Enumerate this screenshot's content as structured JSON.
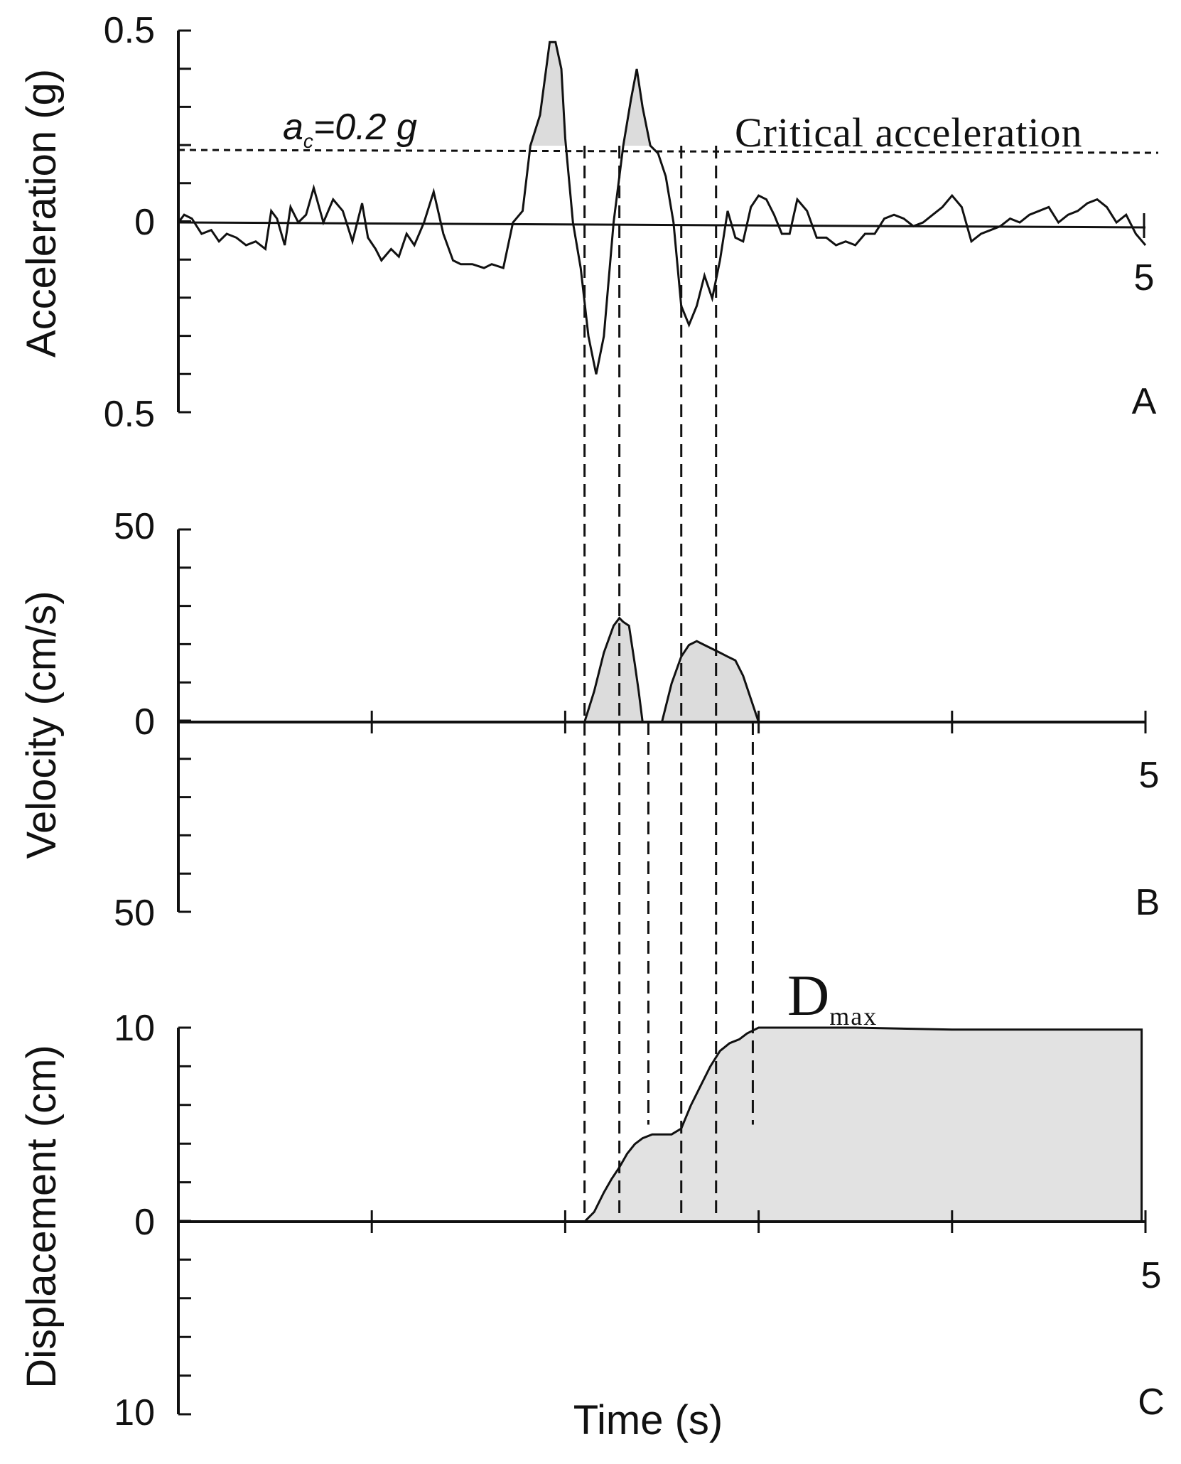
{
  "chart_data": [
    {
      "panel": "A",
      "type": "line",
      "panel_label": "A",
      "ylabel": "Acceleration (g)",
      "ylim": [
        -0.5,
        0.5
      ],
      "xlim": [
        0,
        5
      ],
      "y_tick_labels": {
        "top": "0.5",
        "zero": "0",
        "bottom": "0.5"
      },
      "x_end_label": "5",
      "critical_label": "ac=0.2 g",
      "critical_label_main": "a",
      "critical_label_sub": "c",
      "critical_label_rest": "=0.2 g",
      "critical_annotation": "Critical acceleration",
      "critical_value": 0.2,
      "fill_above_critical": true,
      "fill_color": "#dcdcdc",
      "series": [
        {
          "x": [
            0.0,
            0.03,
            0.07,
            0.12,
            0.17,
            0.21,
            0.25,
            0.3,
            0.35,
            0.4,
            0.45,
            0.48,
            0.51,
            0.55,
            0.58,
            0.62,
            0.66,
            0.7,
            0.75,
            0.8,
            0.85,
            0.9,
            0.95,
            0.98,
            1.02,
            1.05,
            1.1,
            1.14,
            1.18,
            1.22,
            1.27,
            1.32,
            1.37,
            1.42,
            1.46,
            1.52,
            1.58,
            1.62,
            1.68,
            1.73,
            1.78,
            1.82,
            1.87,
            1.92,
            1.95,
            1.98,
            2.0,
            2.04,
            2.08,
            2.12,
            2.16,
            2.2,
            2.25,
            2.3,
            2.34,
            2.37,
            2.4,
            2.44,
            2.48,
            2.52,
            2.56,
            2.6,
            2.64,
            2.68,
            2.72,
            2.76,
            2.8,
            2.84,
            2.88,
            2.92,
            2.96,
            3.0,
            3.04,
            3.08,
            3.12,
            3.16,
            3.2,
            3.25,
            3.3,
            3.35,
            3.4,
            3.45,
            3.5,
            3.55,
            3.6,
            3.65,
            3.7,
            3.75,
            3.8,
            3.85,
            3.9,
            3.95,
            4.0,
            4.05,
            4.1,
            4.15,
            4.2,
            4.25,
            4.3,
            4.35,
            4.4,
            4.45,
            4.5,
            4.55,
            4.6,
            4.65,
            4.7,
            4.75,
            4.8,
            4.85,
            4.9,
            4.95,
            5.0
          ],
          "y": [
            0.0,
            0.02,
            0.01,
            -0.03,
            -0.02,
            -0.05,
            -0.03,
            -0.04,
            -0.06,
            -0.05,
            -0.07,
            0.03,
            0.01,
            -0.06,
            0.04,
            0.0,
            0.02,
            0.09,
            0.0,
            0.06,
            0.03,
            -0.05,
            0.05,
            -0.04,
            -0.07,
            -0.1,
            -0.07,
            -0.09,
            -0.03,
            -0.06,
            0.0,
            0.08,
            -0.03,
            -0.1,
            -0.11,
            -0.11,
            -0.12,
            -0.11,
            -0.12,
            0.0,
            0.03,
            0.2,
            0.28,
            0.47,
            0.47,
            0.4,
            0.22,
            0.0,
            -0.12,
            -0.3,
            -0.4,
            -0.3,
            0.0,
            0.2,
            0.32,
            0.4,
            0.3,
            0.2,
            0.18,
            0.12,
            0.0,
            -0.22,
            -0.27,
            -0.22,
            -0.14,
            -0.2,
            -0.1,
            0.03,
            -0.04,
            -0.05,
            0.04,
            0.07,
            0.06,
            0.02,
            -0.03,
            -0.03,
            0.06,
            0.03,
            -0.04,
            -0.04,
            -0.06,
            -0.05,
            -0.06,
            -0.03,
            -0.03,
            0.01,
            0.02,
            0.01,
            -0.01,
            0.0,
            0.02,
            0.04,
            0.07,
            0.04,
            -0.05,
            -0.03,
            -0.02,
            -0.01,
            0.01,
            0.0,
            0.02,
            0.03,
            0.04,
            0.0,
            0.02,
            0.03,
            0.05,
            0.06,
            0.04,
            0.0,
            0.02,
            -0.03,
            -0.06
          ]
        }
      ]
    },
    {
      "panel": "B",
      "type": "area",
      "panel_label": "B",
      "ylabel": "Velocity (cm/s)",
      "ylim": [
        -50,
        50
      ],
      "xlim": [
        0,
        5
      ],
      "y_tick_labels": {
        "top": "50",
        "zero": "0",
        "bottom": "50"
      },
      "x_end_label": "5",
      "fill_color": "#dcdcdc",
      "series": [
        {
          "x": [
            2.1,
            2.15,
            2.2,
            2.25,
            2.28,
            2.3,
            2.33,
            2.36,
            2.38,
            2.4,
            2.45,
            2.5,
            2.55,
            2.6,
            2.64,
            2.68,
            2.72,
            2.76,
            2.8,
            2.84,
            2.88,
            2.92,
            2.96,
            3.0
          ],
          "y": [
            0,
            8,
            18,
            25,
            27,
            26,
            25,
            15,
            8,
            0,
            null,
            0,
            10,
            17,
            20,
            21,
            20,
            19,
            18,
            17,
            16,
            12,
            6,
            0
          ]
        }
      ]
    },
    {
      "panel": "C",
      "type": "area",
      "panel_label": "C",
      "ylabel": "Displacement (cm)",
      "xlabel": "Time (s)",
      "ylim": [
        -10,
        10
      ],
      "xlim": [
        0,
        5
      ],
      "y_tick_labels": {
        "top": "10",
        "zero": "0",
        "bottom": "10"
      },
      "x_end_label": "5",
      "annotation_main": "D",
      "annotation_sub": "max",
      "fill_color": "#e2e2e2",
      "series": [
        {
          "x": [
            0.0,
            2.1,
            2.15,
            2.2,
            2.24,
            2.28,
            2.32,
            2.36,
            2.4,
            2.45,
            2.5,
            2.55,
            2.6,
            2.65,
            2.7,
            2.75,
            2.8,
            2.85,
            2.9,
            2.94,
            2.98,
            3.0,
            3.5,
            4.0,
            4.5,
            4.98
          ],
          "y": [
            0,
            0,
            0.5,
            1.5,
            2.2,
            2.8,
            3.5,
            4.0,
            4.3,
            4.5,
            4.5,
            4.5,
            4.8,
            6.0,
            7.0,
            8.0,
            8.8,
            9.2,
            9.4,
            9.7,
            9.9,
            10.0,
            10.0,
            9.9,
            9.9,
            9.9
          ]
        }
      ]
    }
  ],
  "critical_times": [
    2.1,
    2.28,
    2.6,
    2.78
  ],
  "end_times": [
    2.43,
    2.97
  ]
}
